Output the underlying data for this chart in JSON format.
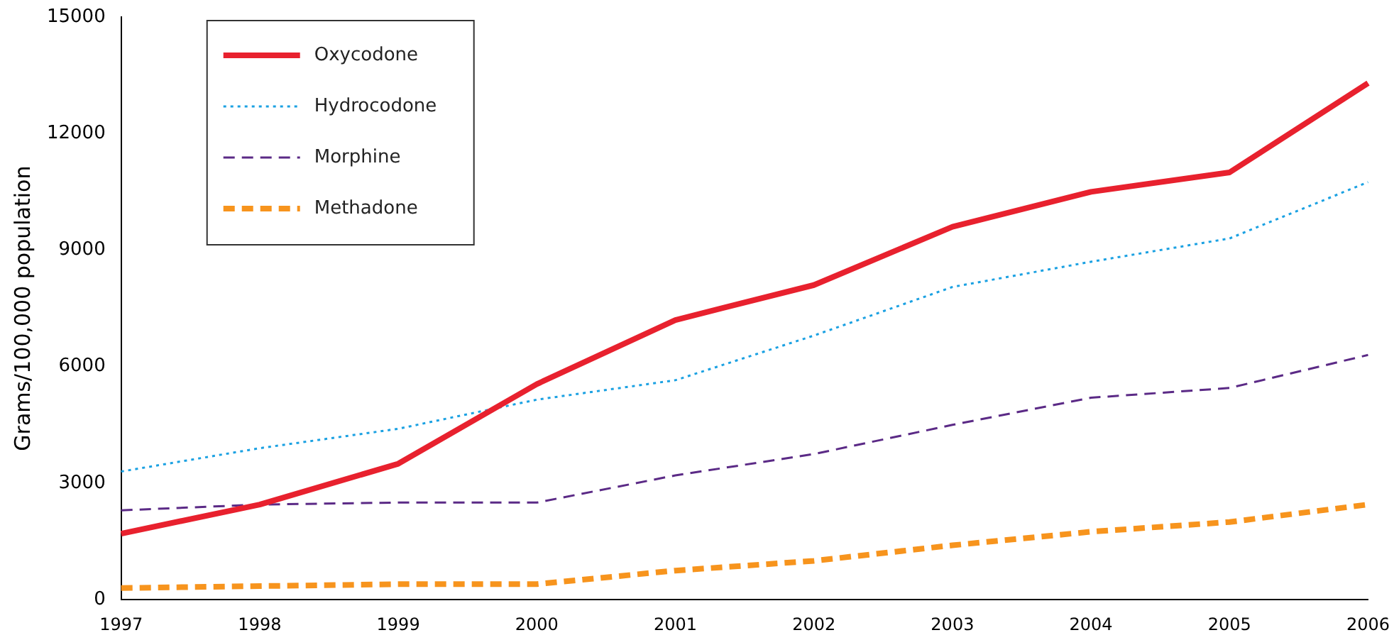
{
  "chart_data": {
    "type": "line",
    "ylabel": "Grams/100,000 population",
    "categories": [
      "1997",
      "1998",
      "1999",
      "2000",
      "2001",
      "2002",
      "2003",
      "2004",
      "2005",
      "2006"
    ],
    "series": [
      {
        "name": "Oxycodone",
        "color": "#e8212e",
        "line_style": "solid",
        "values": [
          1700,
          2450,
          3500,
          5550,
          7200,
          8100,
          9600,
          10500,
          11000,
          13300
        ]
      },
      {
        "name": "Hydrocodone",
        "color": "#1ba1e2",
        "line_style": "dotted",
        "values": [
          3300,
          3900,
          4400,
          5150,
          5650,
          6800,
          8050,
          8700,
          9300,
          10750
        ]
      },
      {
        "name": "Morphine",
        "color": "#5b2a86",
        "line_style": "dashed",
        "values": [
          2300,
          2450,
          2500,
          2500,
          3200,
          3750,
          4500,
          5200,
          5450,
          6300
        ]
      },
      {
        "name": "Methadone",
        "color": "#f7941d",
        "line_style": "dashed",
        "values": [
          300,
          350,
          400,
          400,
          750,
          1000,
          1400,
          1750,
          2000,
          2450
        ]
      }
    ],
    "ylim": [
      0,
      15000
    ],
    "yticks": [
      0,
      3000,
      6000,
      9000,
      12000,
      15000
    ],
    "grid": false,
    "legend": "top left",
    "marker": "none"
  }
}
